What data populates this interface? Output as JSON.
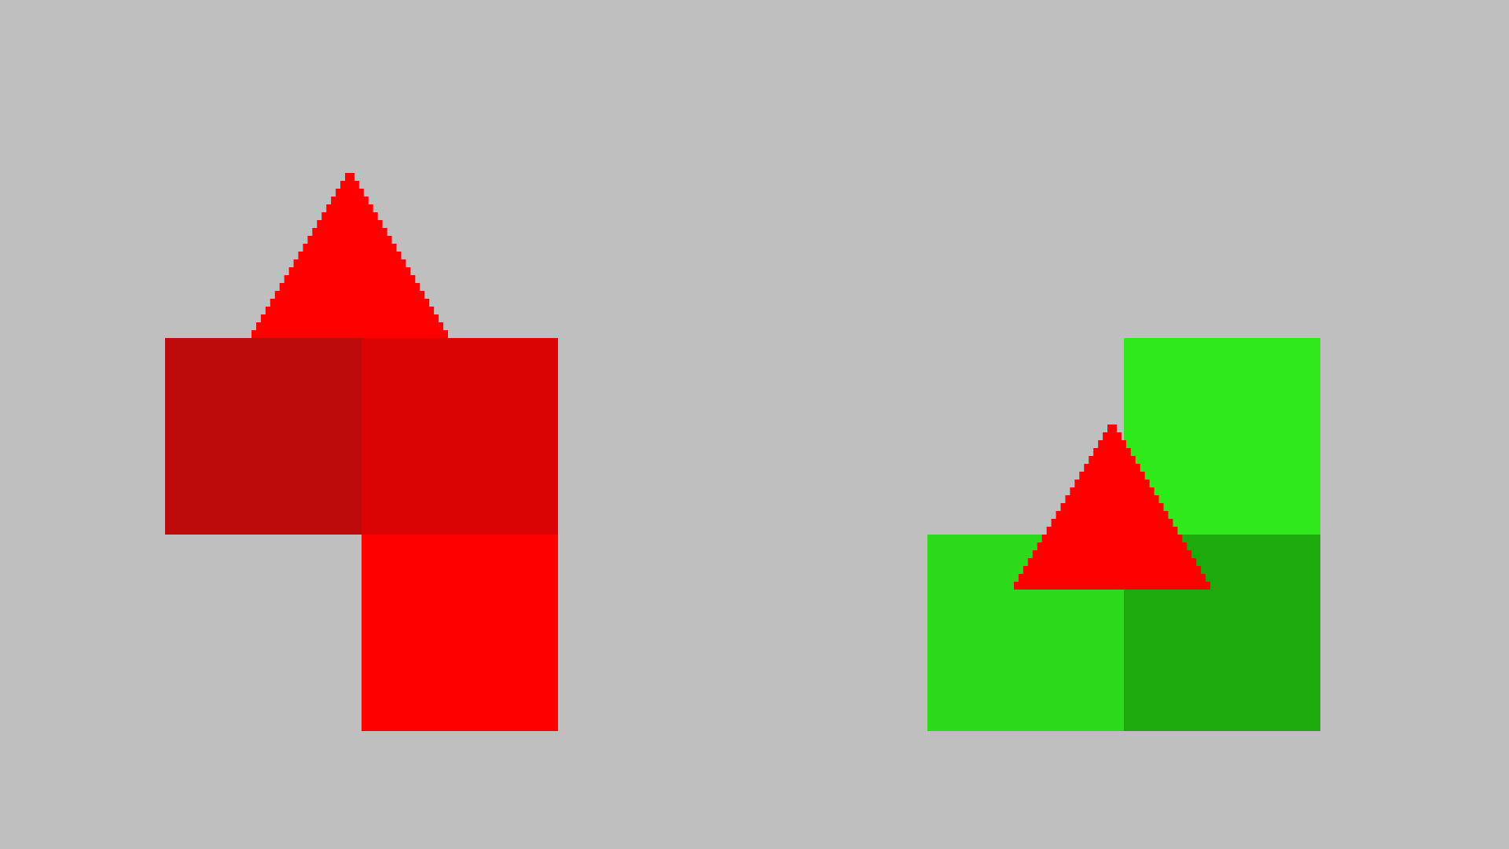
{
  "scene": {
    "background_color": "#bfbfbf"
  },
  "left_group": {
    "token": {
      "kind": "triangle",
      "color": "#ff0000"
    },
    "tiles": [
      {
        "name": "tile-top-left",
        "color": "#bd0b0b"
      },
      {
        "name": "tile-top-right",
        "color": "#db0303"
      },
      {
        "name": "tile-bottom-right",
        "color": "#ff0000"
      }
    ]
  },
  "right_group": {
    "token": {
      "kind": "triangle",
      "color": "#ff0000"
    },
    "tiles": [
      {
        "name": "tile-top-right",
        "color": "#2eea1a"
      },
      {
        "name": "tile-bottom-left",
        "color": "#2bda1b"
      },
      {
        "name": "tile-bottom-right",
        "color": "#1daa0d"
      }
    ]
  }
}
